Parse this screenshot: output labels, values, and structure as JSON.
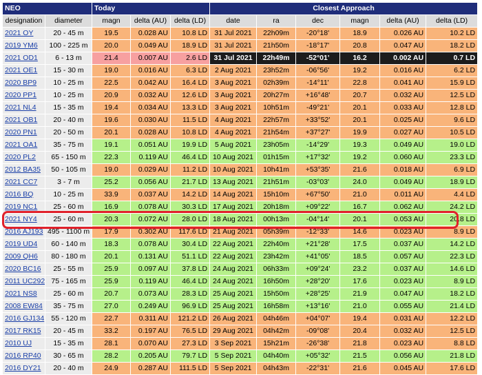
{
  "header": {
    "neo": "NEO",
    "today": "Today",
    "closest_approach": "Closest Approach",
    "columns": [
      "designation",
      "diameter",
      "magn",
      "delta (AU)",
      "delta (LD)",
      "date",
      "ra",
      "dec",
      "magn",
      "delta (AU)",
      "delta (LD)"
    ]
  },
  "highlight_color": "#e0202a",
  "colors": {
    "green": "#b6f08a",
    "orange": "#f9b47a",
    "pink": "#f7a0a0",
    "dark": "#1c1c1c",
    "header_blue": "#1f2d7a"
  },
  "rows": [
    {
      "name": "2021 OY",
      "diameter": "20 - 45 m",
      "magn": "19.5",
      "dau": "0.028 AU",
      "dld": "10.8 LD",
      "date": "31 Jul 2021",
      "ra": "22h09m",
      "dec": "-20°18'",
      "cmagn": "18.9",
      "cau": "0.026 AU",
      "cld": "10.2 LD",
      "color": "orange"
    },
    {
      "name": "2019 YM6",
      "diameter": "100 - 225 m",
      "magn": "20.0",
      "dau": "0.049 AU",
      "dld": "18.9 LD",
      "date": "31 Jul 2021",
      "ra": "21h50m",
      "dec": "-18°17'",
      "cmagn": "20.8",
      "cau": "0.047 AU",
      "cld": "18.2 LD",
      "color": "orange"
    },
    {
      "name": "2021 OD1",
      "diameter": "6 - 13 m",
      "magn": "21.4",
      "dau": "0.007 AU",
      "dld": "2.6 LD",
      "date": "31 Jul 2021",
      "ra": "22h49m",
      "dec": "-52°01'",
      "cmagn": "16.2",
      "cau": "0.002 AU",
      "cld": "0.7 LD",
      "color": "pink-dark"
    },
    {
      "name": "2021 OE1",
      "diameter": "15 - 30 m",
      "magn": "19.0",
      "dau": "0.016 AU",
      "dld": "6.3 LD",
      "date": "2 Aug 2021",
      "ra": "23h52m",
      "dec": "-06°56'",
      "cmagn": "19.2",
      "cau": "0.016 AU",
      "cld": "6.2 LD",
      "color": "orange"
    },
    {
      "name": "2020 BP9",
      "diameter": "10 - 25 m",
      "magn": "22.5",
      "dau": "0.042 AU",
      "dld": "16.4 LD",
      "date": "3 Aug 2021",
      "ra": "02h39m",
      "dec": "-14°11'",
      "cmagn": "22.8",
      "cau": "0.041 AU",
      "cld": "15.9 LD",
      "color": "orange"
    },
    {
      "name": "2020 PP1",
      "diameter": "10 - 25 m",
      "magn": "20.9",
      "dau": "0.032 AU",
      "dld": "12.6 LD",
      "date": "3 Aug 2021",
      "ra": "20h27m",
      "dec": "+16°48'",
      "cmagn": "20.7",
      "cau": "0.032 AU",
      "cld": "12.5 LD",
      "color": "orange"
    },
    {
      "name": "2021 NL4",
      "diameter": "15 - 35 m",
      "magn": "19.4",
      "dau": "0.034 AU",
      "dld": "13.3 LD",
      "date": "3 Aug 2021",
      "ra": "10h51m",
      "dec": "-49°21'",
      "cmagn": "20.1",
      "cau": "0.033 AU",
      "cld": "12.8 LD",
      "color": "orange"
    },
    {
      "name": "2021 OB1",
      "diameter": "20 - 40 m",
      "magn": "19.6",
      "dau": "0.030 AU",
      "dld": "11.5 LD",
      "date": "4 Aug 2021",
      "ra": "22h57m",
      "dec": "+33°52'",
      "cmagn": "20.1",
      "cau": "0.025 AU",
      "cld": "9.6 LD",
      "color": "orange"
    },
    {
      "name": "2020 PN1",
      "diameter": "20 - 50 m",
      "magn": "20.1",
      "dau": "0.028 AU",
      "dld": "10.8 LD",
      "date": "4 Aug 2021",
      "ra": "21h54m",
      "dec": "+37°27'",
      "cmagn": "19.9",
      "cau": "0.027 AU",
      "cld": "10.5 LD",
      "color": "orange"
    },
    {
      "name": "2021 OA1",
      "diameter": "35 - 75 m",
      "magn": "19.1",
      "dau": "0.051 AU",
      "dld": "19.9 LD",
      "date": "5 Aug 2021",
      "ra": "23h05m",
      "dec": "-14°29'",
      "cmagn": "19.3",
      "cau": "0.049 AU",
      "cld": "19.0 LD",
      "color": "green"
    },
    {
      "name": "2020 PL2",
      "diameter": "65 - 150 m",
      "magn": "22.3",
      "dau": "0.119 AU",
      "dld": "46.4 LD",
      "date": "10 Aug 2021",
      "ra": "01h15m",
      "dec": "+17°32'",
      "cmagn": "19.2",
      "cau": "0.060 AU",
      "cld": "23.3 LD",
      "color": "green"
    },
    {
      "name": "2012 BA35",
      "diameter": "50 - 105 m",
      "magn": "19.0",
      "dau": "0.029 AU",
      "dld": "11.2 LD",
      "date": "10 Aug 2021",
      "ra": "10h41m",
      "dec": "+53°35'",
      "cmagn": "21.6",
      "cau": "0.018 AU",
      "cld": "6.9 LD",
      "color": "orange"
    },
    {
      "name": "2021 CC7",
      "diameter": "3 - 7 m",
      "magn": "25.2",
      "dau": "0.056 AU",
      "dld": "21.7 LD",
      "date": "13 Aug 2021",
      "ra": "21h51m",
      "dec": "-03°03'",
      "cmagn": "24.0",
      "cau": "0.049 AU",
      "cld": "18.9 LD",
      "color": "green"
    },
    {
      "name": "2016 BQ",
      "diameter": "10 - 25 m",
      "magn": "33.9",
      "dau": "0.037 AU",
      "dld": "14.2 LD",
      "date": "14 Aug 2021",
      "ra": "15h10m",
      "dec": "+67°50'",
      "cmagn": "21.0",
      "cau": "0.011 AU",
      "cld": "4.4 LD",
      "color": "orange"
    },
    {
      "name": "2019 NC1",
      "diameter": "25 - 60 m",
      "magn": "16.9",
      "dau": "0.078 AU",
      "dld": "30.3 LD",
      "date": "17 Aug 2021",
      "ra": "20h18m",
      "dec": "+09°22'",
      "cmagn": "16.7",
      "cau": "0.062 AU",
      "cld": "24.2 LD",
      "color": "green"
    },
    {
      "name": "2021 NY4",
      "diameter": "25 - 60 m",
      "magn": "20.3",
      "dau": "0.072 AU",
      "dld": "28.0 LD",
      "date": "18 Aug 2021",
      "ra": "00h13m",
      "dec": "-04°14'",
      "cmagn": "20.1",
      "cau": "0.053 AU",
      "cld": "20.8 LD",
      "color": "green"
    },
    {
      "name": "2016 AJ193",
      "diameter": "495 - 1100 m",
      "magn": "17.9",
      "dau": "0.302 AU",
      "dld": "117.6 LD",
      "date": "21 Aug 2021",
      "ra": "05h39m",
      "dec": "-12°33'",
      "cmagn": "14.6",
      "cau": "0.023 AU",
      "cld": "8.9 LD",
      "color": "orange"
    },
    {
      "name": "2019 UD4",
      "diameter": "60 - 140 m",
      "magn": "18.3",
      "dau": "0.078 AU",
      "dld": "30.4 LD",
      "date": "22 Aug 2021",
      "ra": "22h40m",
      "dec": "+21°28'",
      "cmagn": "17.5",
      "cau": "0.037 AU",
      "cld": "14.2 LD",
      "color": "green"
    },
    {
      "name": "2009 QH6",
      "diameter": "80 - 180 m",
      "magn": "20.1",
      "dau": "0.131 AU",
      "dld": "51.1 LD",
      "date": "22 Aug 2021",
      "ra": "23h42m",
      "dec": "+41°05'",
      "cmagn": "18.5",
      "cau": "0.057 AU",
      "cld": "22.3 LD",
      "color": "green"
    },
    {
      "name": "2020 BC16",
      "diameter": "25 - 55 m",
      "magn": "25.9",
      "dau": "0.097 AU",
      "dld": "37.8 LD",
      "date": "24 Aug 2021",
      "ra": "06h33m",
      "dec": "+09°24'",
      "cmagn": "23.2",
      "cau": "0.037 AU",
      "cld": "14.6 LD",
      "color": "green"
    },
    {
      "name": "2011 UC292",
      "diameter": "75 - 165 m",
      "magn": "25.9",
      "dau": "0.119 AU",
      "dld": "46.4 LD",
      "date": "24 Aug 2021",
      "ra": "16h50m",
      "dec": "+28°20'",
      "cmagn": "17.6",
      "cau": "0.023 AU",
      "cld": "8.9 LD",
      "color": "green"
    },
    {
      "name": "2021 NS8",
      "diameter": "25 - 60 m",
      "magn": "20.7",
      "dau": "0.073 AU",
      "dld": "28.3 LD",
      "date": "25 Aug 2021",
      "ra": "15h50m",
      "dec": "+28°25'",
      "cmagn": "21.9",
      "cau": "0.047 AU",
      "cld": "18.2 LD",
      "color": "green"
    },
    {
      "name": "2008 EW84",
      "diameter": "35 - 75 m",
      "magn": "27.0",
      "dau": "0.249 AU",
      "dld": "96.9 LD",
      "date": "25 Aug 2021",
      "ra": "16h58m",
      "dec": "+13°16'",
      "cmagn": "21.0",
      "cau": "0.055 AU",
      "cld": "21.4 LD",
      "color": "green"
    },
    {
      "name": "2016 GJ134",
      "diameter": "55 - 120 m",
      "magn": "22.7",
      "dau": "0.311 AU",
      "dld": "121.2 LD",
      "date": "26 Aug 2021",
      "ra": "04h46m",
      "dec": "+04°07'",
      "cmagn": "19.4",
      "cau": "0.031 AU",
      "cld": "12.2 LD",
      "color": "orange"
    },
    {
      "name": "2017 RK15",
      "diameter": "20 - 45 m",
      "magn": "33.2",
      "dau": "0.197 AU",
      "dld": "76.5 LD",
      "date": "29 Aug 2021",
      "ra": "04h42m",
      "dec": "-09°08'",
      "cmagn": "20.4",
      "cau": "0.032 AU",
      "cld": "12.5 LD",
      "color": "orange"
    },
    {
      "name": "2010 UJ",
      "diameter": "15 - 35 m",
      "magn": "28.1",
      "dau": "0.070 AU",
      "dld": "27.3 LD",
      "date": "3 Sep 2021",
      "ra": "15h21m",
      "dec": "-26°38'",
      "cmagn": "21.8",
      "cau": "0.023 AU",
      "cld": "8.8 LD",
      "color": "orange"
    },
    {
      "name": "2016 RP40",
      "diameter": "30 - 65 m",
      "magn": "28.2",
      "dau": "0.205 AU",
      "dld": "79.7 LD",
      "date": "5 Sep 2021",
      "ra": "04h40m",
      "dec": "+05°32'",
      "cmagn": "21.5",
      "cau": "0.056 AU",
      "cld": "21.8 LD",
      "color": "green"
    },
    {
      "name": "2016 DY21",
      "diameter": "20 - 40 m",
      "magn": "24.9",
      "dau": "0.287 AU",
      "dld": "111.5 LD",
      "date": "5 Sep 2021",
      "ra": "04h43m",
      "dec": "-22°31'",
      "cmagn": "21.6",
      "cau": "0.045 AU",
      "cld": "17.6 LD",
      "color": "orange"
    }
  ]
}
